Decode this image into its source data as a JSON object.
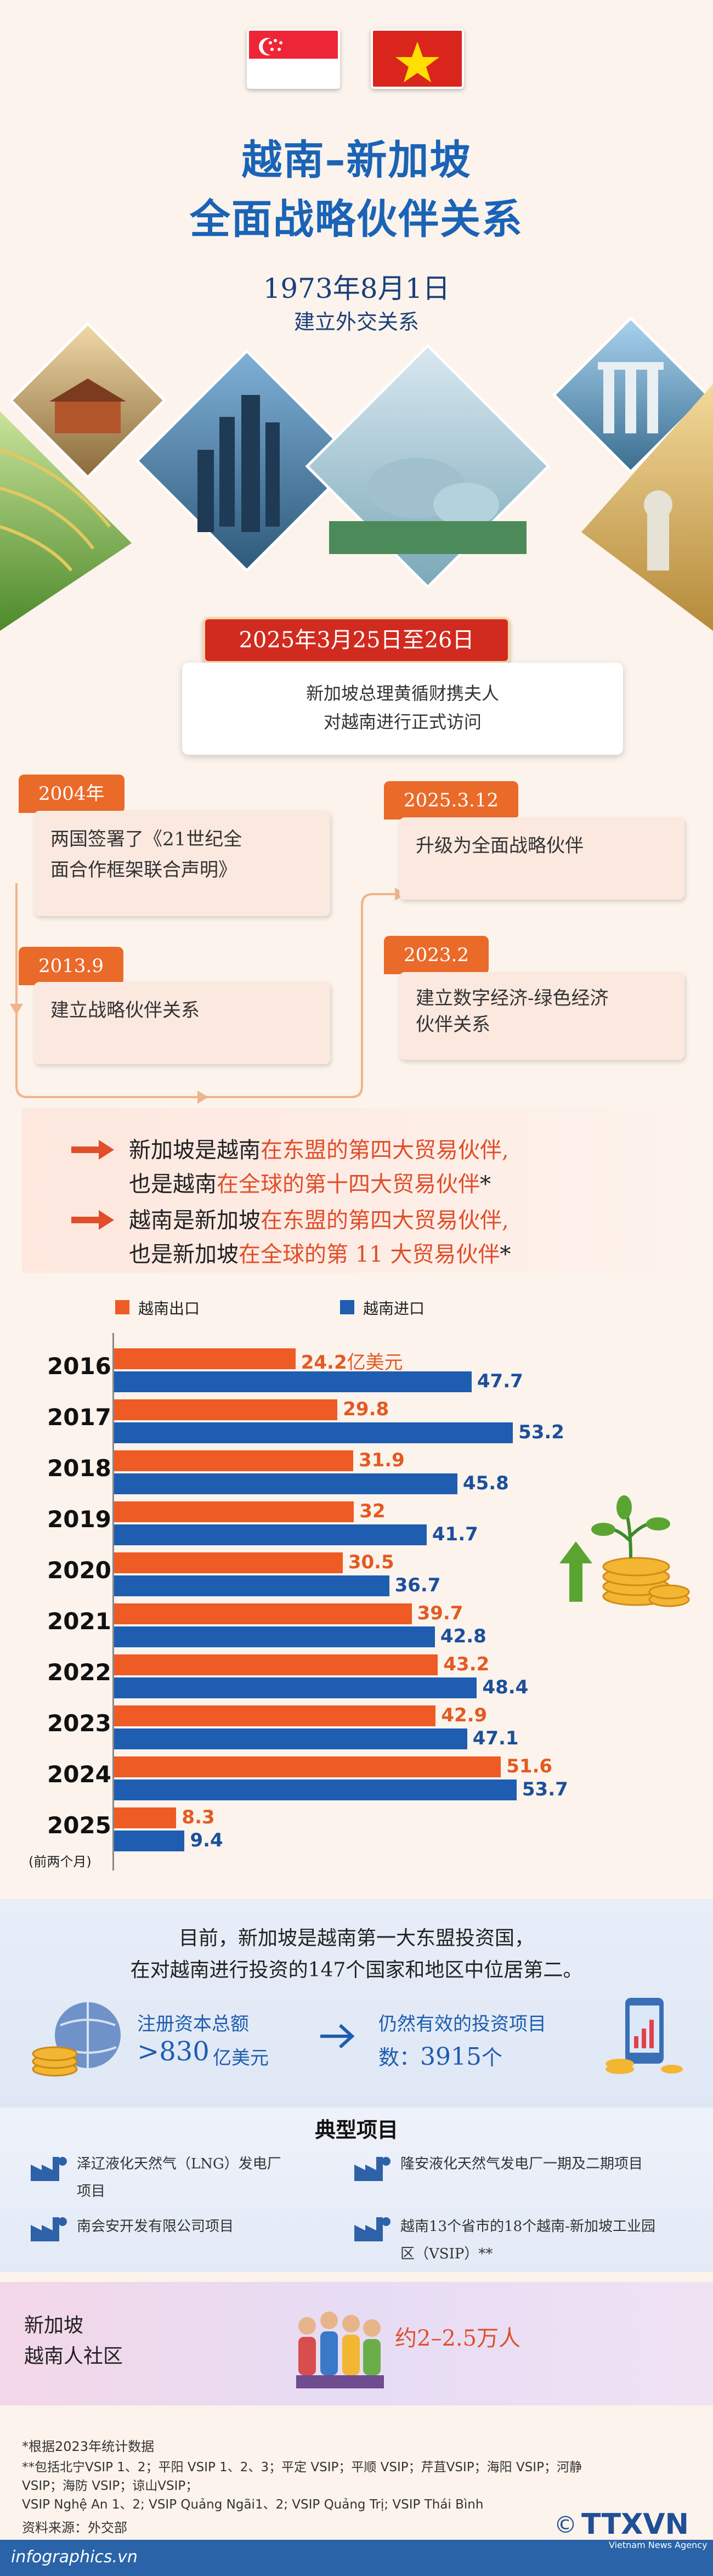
{
  "header": {
    "title_line1": "越南–新加坡",
    "title_line2": "全面战略伙伴关系",
    "established_date": "1973年8月1日",
    "established_label": "建立外交关系"
  },
  "visit": {
    "dates": "2025年3月25日至26日",
    "line1": "新加坡总理黄循财携夫人",
    "line2": "对越南进行正式访问"
  },
  "timeline": [
    {
      "date": "2004年",
      "text_1": "两国签署了《21世纪全",
      "text_2": "面合作框架联合声明》"
    },
    {
      "date": "2013.9",
      "text_1": "建立战略伙伴关系",
      "text_2": ""
    },
    {
      "date": "2025.3.12",
      "text_1": "升级为全面战略伙伴",
      "text_2": ""
    },
    {
      "date": "2023.2",
      "text_1": "建立数字经济-绿色经济",
      "text_2": "伙伴关系"
    }
  ],
  "ranking": {
    "line1_a": "新加坡是越南",
    "line1_b": "在东盟的第四大贸易伙伴,",
    "line2_a": "也是越南",
    "line2_b": "在全球的第十四大贸易伙伴",
    "line2_c": "*",
    "line3_a": "越南是新加坡",
    "line3_b": "在东盟的第四大贸易伙伴,",
    "line4_a": "也是新加坡",
    "line4_b": "在全球的第 11 大贸易伙伴",
    "line4_c": "*"
  },
  "colors": {
    "export": "#ee5b24",
    "import": "#1e5db0",
    "accent": "#1a63b6",
    "visit_red": "#d12b1f"
  },
  "chart_data": {
    "type": "bar",
    "orientation": "horizontal",
    "categories": [
      "2016",
      "2017",
      "2018",
      "2019",
      "2020",
      "2021",
      "2022",
      "2023",
      "2024",
      "2025"
    ],
    "category_note": "(前两个月)",
    "unit": "亿美元",
    "series": [
      {
        "name": "越南出口",
        "values": [
          24.2,
          29.8,
          31.9,
          32,
          30.5,
          39.7,
          43.2,
          42.9,
          51.6,
          8.3
        ]
      },
      {
        "name": "越南进口",
        "values": [
          47.7,
          53.2,
          45.8,
          41.7,
          36.7,
          42.8,
          48.4,
          47.1,
          53.7,
          9.4
        ]
      }
    ],
    "value_labels_export": [
      "24.2",
      "29.8",
      "31.9",
      "32",
      "30.5",
      "39.7",
      "43.2",
      "42.9",
      "51.6",
      "8.3"
    ],
    "value_labels_import": [
      "47.7",
      "53.2",
      "45.8",
      "41.7",
      "36.7",
      "42.8",
      "48.4",
      "47.1",
      "53.7",
      "9.4"
    ],
    "xlim": [
      0,
      60
    ],
    "legend_position": "top-left"
  },
  "investment": {
    "line1": "目前，新加坡是越南第一大东盟投资国，",
    "line2": "在对越南进行投资的147个国家和地区中位居第二。",
    "capital_label": "注册资本总额",
    "capital_value": ">830",
    "capital_unit": "亿美元",
    "projects_label": "仍然有效的投资项目",
    "projects_count_prefix": "数：",
    "projects_count": "3915",
    "projects_unit": "个"
  },
  "typical_projects": {
    "title": "典型项目",
    "items": [
      "泽辽液化天然气（LNG）发电厂",
      "项目",
      "南会安开发有限公司项目",
      "隆安液化天然气发电厂一期及二期项目",
      "越南13个省市的18个越南-新加坡工业园",
      "区（VSIP）**"
    ]
  },
  "community": {
    "label_1": "新加坡",
    "label_2": "越南人社区",
    "value": "约2–2.5万人"
  },
  "notes": {
    "note1": "*根据2023年统计数据",
    "note2": "**包括北宁VSIP 1、2；平阳 VSIP 1、2、3；平定 VSIP；平顺 VSIP；芹苴VSIP；海阳 VSIP；河静",
    "note3": "VSIP；海防 VSIP；谅山VSIP；",
    "note4": "VSIP Nghệ An 1、2; VSIP Quảng Ngãi1、2; VSIP Quảng Trị; VSIP Thái Bình",
    "source": "资料来源：外交部"
  },
  "footer": {
    "site": "infographics.vn",
    "copyright": "©",
    "agency": "TTXVN",
    "agency_sub": "Vietnam News Agency"
  }
}
